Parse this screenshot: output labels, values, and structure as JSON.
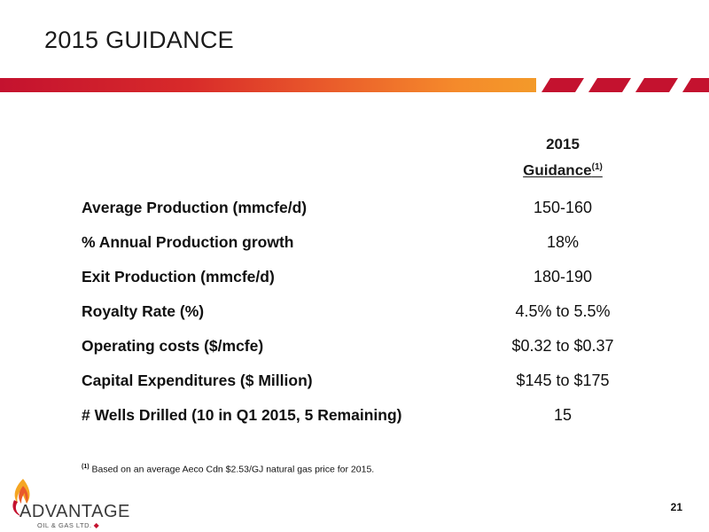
{
  "slide": {
    "title": "2015 GUIDANCE",
    "page_number": "21"
  },
  "column_header": {
    "line1": "2015",
    "line2": "Guidance",
    "footnote_ref": "(1)"
  },
  "rows": [
    {
      "label": "Average Production (mmcfe/d)",
      "value": "150-160"
    },
    {
      "label": "% Annual Production growth",
      "value": "18%"
    },
    {
      "label": "Exit Production (mmcfe/d)",
      "value": "180-190"
    },
    {
      "label": "Royalty Rate (%)",
      "value": "4.5% to 5.5%"
    },
    {
      "label": "Operating costs ($/mcfe)",
      "value": "$0.32 to $0.37"
    },
    {
      "label": "Capital Expenditures ($ Million)",
      "value": "$145 to $175"
    },
    {
      "label": "# Wells Drilled (10 in Q1 2015, 5 Remaining)",
      "value": "15"
    }
  ],
  "footnote": {
    "marker": "(1)",
    "text": "Based on an average Aeco Cdn $2.53/GJ natural gas price for 2015."
  },
  "logo": {
    "name": "ADVANTAGE",
    "subtitle": "OIL & GAS LTD.",
    "icon": "flame-icon"
  },
  "colors": {
    "accent_red": "#c4122f",
    "accent_orange": "#f39a2a"
  }
}
